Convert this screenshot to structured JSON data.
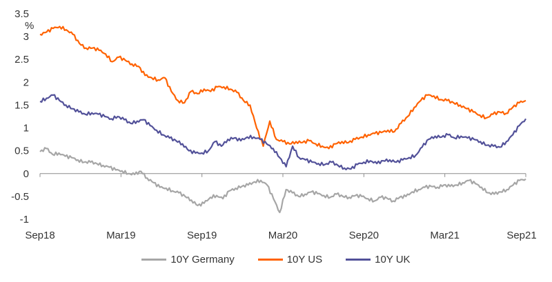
{
  "chart_data": {
    "type": "line",
    "title": "",
    "xlabel": "",
    "ylabel": "%",
    "ylim": [
      -1,
      3.5
    ],
    "yticks": [
      3.5,
      3,
      2.5,
      2,
      1.5,
      1,
      0.5,
      0,
      -0.5,
      -1
    ],
    "ytick_labels": [
      "3.5",
      "3",
      "2.5",
      "2",
      "1.5",
      "1",
      "0.5",
      "0",
      "-0.5",
      "-1"
    ],
    "xticks": [
      "Sep18",
      "Mar19",
      "Sep19",
      "Mar20",
      "Sep20",
      "Mar21",
      "Sep21"
    ],
    "x_start": "Sep18",
    "x_end": "Sep21",
    "grid": false,
    "legend_position": "bottom",
    "series": [
      {
        "name": "10Y Germany",
        "color": "#a6a6a6",
        "values": [
          0.48,
          0.55,
          0.42,
          0.45,
          0.38,
          0.35,
          0.3,
          0.25,
          0.25,
          0.22,
          0.18,
          0.14,
          0.08,
          0.06,
          0.0,
          -0.02,
          0.05,
          -0.1,
          -0.2,
          -0.3,
          -0.32,
          -0.38,
          -0.42,
          -0.5,
          -0.58,
          -0.7,
          -0.65,
          -0.52,
          -0.48,
          -0.55,
          -0.38,
          -0.32,
          -0.28,
          -0.25,
          -0.18,
          -0.15,
          -0.25,
          -0.55,
          -0.85,
          -0.35,
          -0.42,
          -0.5,
          -0.45,
          -0.4,
          -0.44,
          -0.48,
          -0.52,
          -0.45,
          -0.5,
          -0.52,
          -0.48,
          -0.5,
          -0.55,
          -0.6,
          -0.52,
          -0.54,
          -0.6,
          -0.52,
          -0.5,
          -0.4,
          -0.35,
          -0.3,
          -0.28,
          -0.3,
          -0.25,
          -0.28,
          -0.25,
          -0.2,
          -0.15,
          -0.22,
          -0.3,
          -0.42,
          -0.45,
          -0.4,
          -0.35,
          -0.25,
          -0.15,
          -0.12
        ]
      },
      {
        "name": "10Y US",
        "color": "#ff6200",
        "values": [
          3.05,
          3.1,
          3.18,
          3.22,
          3.15,
          3.05,
          2.85,
          2.75,
          2.75,
          2.7,
          2.62,
          2.45,
          2.55,
          2.48,
          2.4,
          2.35,
          2.15,
          2.1,
          2.05,
          2.1,
          1.8,
          1.6,
          1.55,
          1.8,
          1.75,
          1.85,
          1.8,
          1.9,
          1.9,
          1.85,
          1.78,
          1.6,
          1.5,
          1.0,
          0.6,
          1.15,
          0.75,
          0.7,
          0.65,
          0.7,
          0.68,
          0.72,
          0.65,
          0.6,
          0.55,
          0.65,
          0.7,
          0.68,
          0.75,
          0.8,
          0.85,
          0.88,
          0.9,
          0.95,
          0.92,
          1.1,
          1.25,
          1.45,
          1.6,
          1.72,
          1.7,
          1.62,
          1.6,
          1.55,
          1.5,
          1.42,
          1.35,
          1.28,
          1.22,
          1.3,
          1.35,
          1.32,
          1.45,
          1.55,
          1.6
        ]
      },
      {
        "name": "10Y UK",
        "color": "#525199",
        "values": [
          1.58,
          1.65,
          1.72,
          1.6,
          1.5,
          1.42,
          1.35,
          1.3,
          1.33,
          1.3,
          1.25,
          1.2,
          1.25,
          1.18,
          1.1,
          1.15,
          1.18,
          1.05,
          0.95,
          0.85,
          0.78,
          0.72,
          0.65,
          0.5,
          0.45,
          0.45,
          0.5,
          0.7,
          0.6,
          0.75,
          0.78,
          0.72,
          0.8,
          0.8,
          0.75,
          0.65,
          0.55,
          0.35,
          0.15,
          0.6,
          0.35,
          0.3,
          0.25,
          0.22,
          0.2,
          0.25,
          0.18,
          0.12,
          0.1,
          0.2,
          0.25,
          0.28,
          0.22,
          0.28,
          0.3,
          0.25,
          0.3,
          0.35,
          0.4,
          0.58,
          0.75,
          0.82,
          0.8,
          0.85,
          0.78,
          0.82,
          0.78,
          0.75,
          0.7,
          0.62,
          0.6,
          0.58,
          0.7,
          0.85,
          1.05,
          1.2
        ]
      }
    ]
  }
}
